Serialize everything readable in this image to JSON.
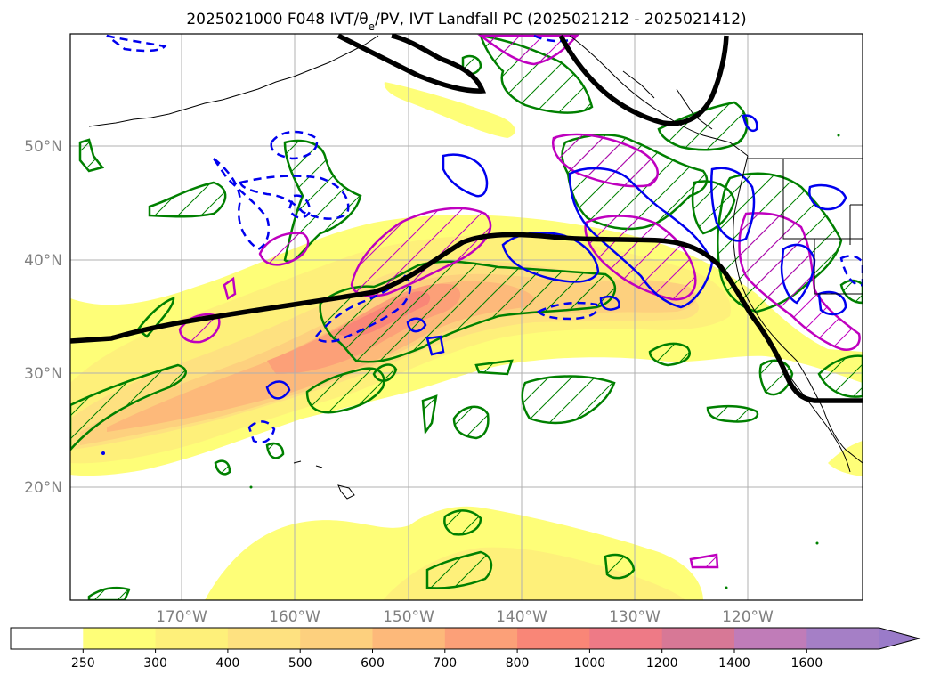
{
  "title": "2025021000 F048 IVT/θe/PV, IVT Landfall PC (2025021212 - 2025021412)",
  "latitude_labels": [
    "50°N",
    "40°N",
    "30°N",
    "20°N"
  ],
  "longitude_labels": [
    "170°W",
    "160°W",
    "150°W",
    "140°W",
    "130°W",
    "120°W"
  ],
  "colorbar": {
    "levels": [
      "250",
      "300",
      "400",
      "500",
      "600",
      "700",
      "800",
      "1000",
      "1200",
      "1400",
      "1600"
    ],
    "colors": [
      "#ffffff",
      "#fefe78",
      "#fef07a",
      "#fee180",
      "#fdd07e",
      "#fdb97a",
      "#fca078",
      "#f98677",
      "#ee7a86",
      "#d77896",
      "#c07cb8",
      "#a57fc6",
      "#9a7bc9"
    ],
    "extend": "max"
  },
  "colors": {
    "ivt_fill_low": "#fefe78",
    "ivt_fill_mid": "#fdd07e",
    "ivt_fill_high": "#f98677",
    "pc_green": "#008000",
    "pc_blue": "#0000ee",
    "pc_magenta": "#bf00bf",
    "pv_black": "#000000",
    "coast": "#000000",
    "grid": "#b0b0b0",
    "label_grey": "#808080"
  }
}
